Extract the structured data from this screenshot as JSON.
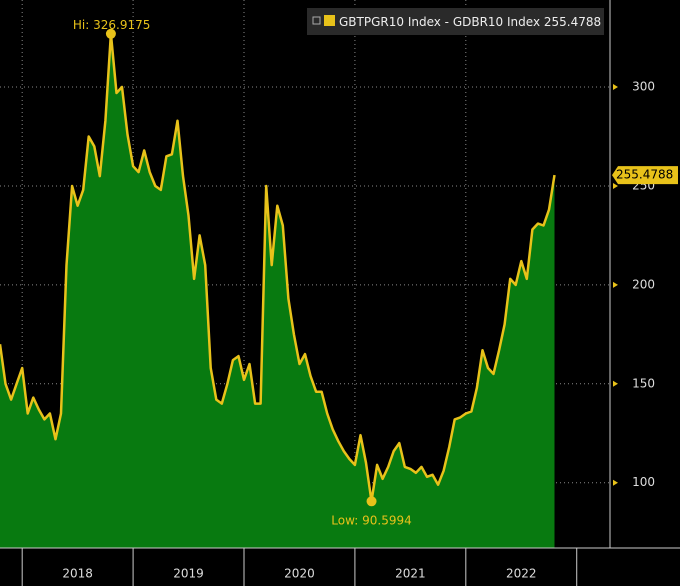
{
  "chart_data": {
    "type": "area",
    "series": [
      {
        "name": "GBTPGR10 Index - GDBR10 Index",
        "color": "#e8c21a",
        "fill": "#087a10",
        "values": [
          170,
          150,
          142,
          150,
          158,
          135,
          143,
          137,
          132,
          135,
          122,
          135,
          210,
          250,
          240,
          248,
          275,
          270,
          255,
          283,
          326.9175,
          297,
          300,
          276,
          260,
          257,
          268,
          257,
          250,
          248,
          265,
          266,
          283,
          255,
          235,
          203,
          225,
          210,
          158,
          142,
          140,
          150,
          162,
          164,
          152,
          160,
          140,
          140,
          250,
          210,
          240,
          230,
          193,
          175,
          160,
          165,
          154,
          146,
          146,
          135,
          127,
          121,
          116,
          112,
          109,
          124,
          110,
          90.5994,
          109,
          102,
          108,
          116,
          120,
          108,
          107,
          105,
          108,
          103,
          104,
          99,
          106,
          118,
          132,
          133,
          135,
          136,
          148,
          167,
          158,
          155,
          167,
          180,
          203,
          200,
          212,
          203,
          228,
          231,
          230,
          238,
          255.4788
        ]
      }
    ],
    "x": [
      2017.8,
      2017.85,
      2017.9,
      2017.95,
      2018,
      2018.05,
      2018.1,
      2018.15,
      2018.2,
      2018.25,
      2018.3,
      2018.35,
      2018.4,
      2018.45,
      2018.5,
      2018.55,
      2018.6,
      2018.65,
      2018.7,
      2018.75,
      2018.8,
      2018.85,
      2018.9,
      2018.95,
      2019,
      2019.05,
      2019.1,
      2019.15,
      2019.2,
      2019.25,
      2019.3,
      2019.35,
      2019.4,
      2019.45,
      2019.5,
      2019.55,
      2019.6,
      2019.65,
      2019.7,
      2019.75,
      2019.8,
      2019.85,
      2019.9,
      2019.95,
      2020,
      2020.05,
      2020.1,
      2020.15,
      2020.2,
      2020.25,
      2020.3,
      2020.35,
      2020.4,
      2020.45,
      2020.5,
      2020.55,
      2020.6,
      2020.65,
      2020.7,
      2020.75,
      2020.8,
      2020.85,
      2020.9,
      2020.95,
      2021,
      2021.05,
      2021.1,
      2021.15,
      2021.2,
      2021.25,
      2021.3,
      2021.35,
      2021.4,
      2021.45,
      2021.5,
      2021.55,
      2021.6,
      2021.65,
      2021.7,
      2021.75,
      2021.8,
      2021.85,
      2021.9,
      2021.95,
      2022,
      2022.05,
      2022.1,
      2022.15,
      2022.2,
      2022.25,
      2022.3,
      2022.35,
      2022.4,
      2022.45,
      2022.5,
      2022.55,
      2022.6,
      2022.65,
      2022.7,
      2022.75,
      2022.8
    ],
    "xlim": [
      2017.8,
      2023.3
    ],
    "xticks": [
      2018,
      2019,
      2020,
      2021,
      2022
    ],
    "ylim": [
      67,
      344
    ],
    "yticks": [
      100,
      150,
      200,
      250,
      300
    ],
    "grid": true,
    "high_label": "Hi:",
    "low_label": "Low:",
    "legend": "top-right"
  }
}
